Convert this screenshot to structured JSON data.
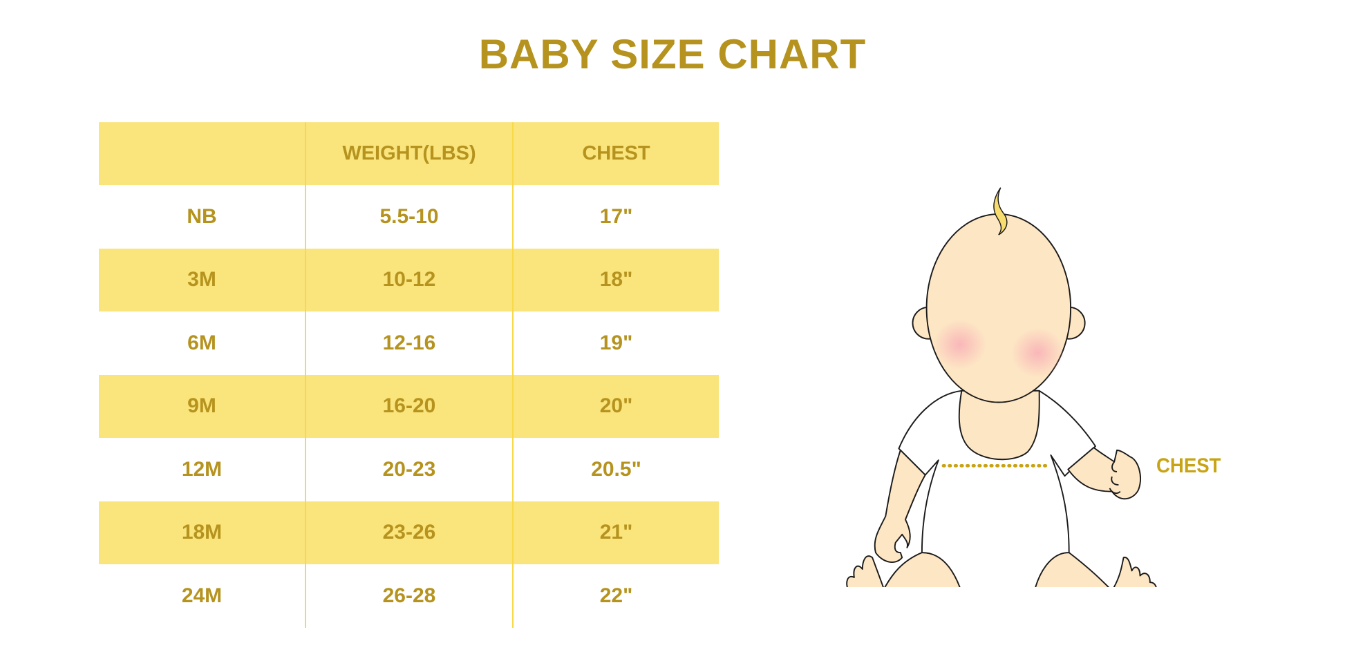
{
  "title": "BABY SIZE CHART",
  "table": {
    "headers": [
      "",
      "WEIGHT(LBS)",
      "CHEST"
    ],
    "rows": [
      [
        "NB",
        "5.5-10",
        "17\""
      ],
      [
        "3M",
        "10-12",
        "18\""
      ],
      [
        "6M",
        "12-16",
        "19\""
      ],
      [
        "9M",
        "16-20",
        "20\""
      ],
      [
        "12M",
        "20-23",
        "20.5\""
      ],
      [
        "18M",
        "23-26",
        "21\""
      ],
      [
        "24M",
        "26-28",
        "22\""
      ]
    ]
  },
  "illustration": {
    "measurement_label": "CHEST"
  },
  "colors": {
    "text_gold": "#B5931E",
    "band_yellow": "#FAE47C",
    "skin": "#FDE6C4"
  }
}
